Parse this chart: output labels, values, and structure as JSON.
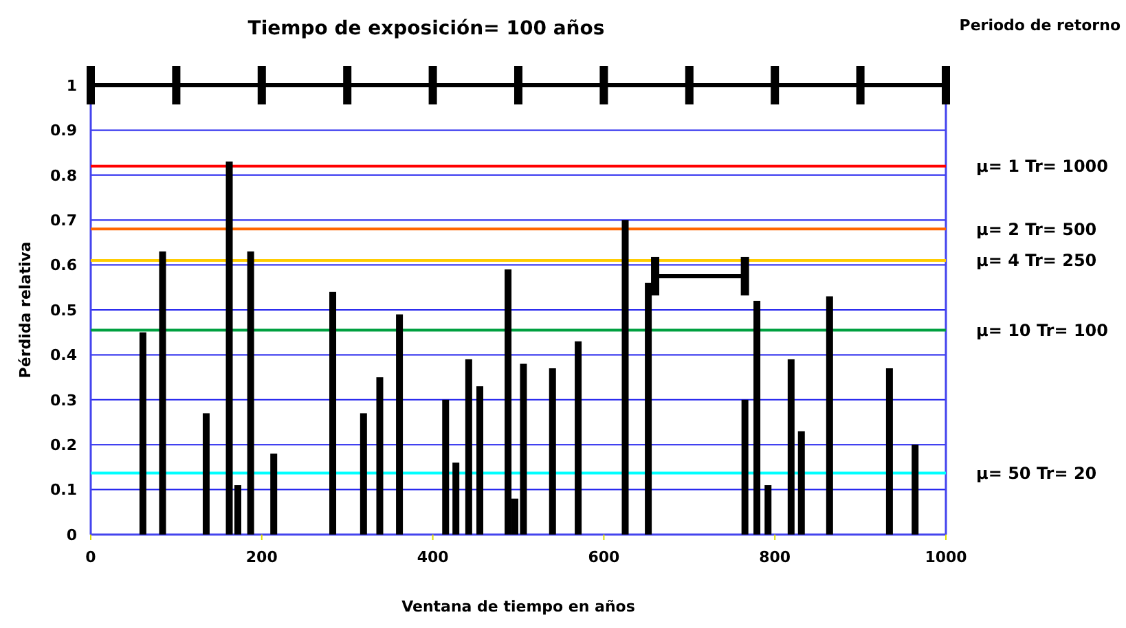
{
  "chart_data": {
    "type": "bar",
    "title": "Tiempo de exposición= 100 años",
    "xlabel": "Ventana de tiempo en años",
    "ylabel": "Pérdida relativa",
    "annotations": [
      "Periodo de retorno",
      "µ= 1  Tr= 1000",
      "µ= 2  Tr= 500",
      "µ= 4  Tr= 250",
      "µ= 10 Tr= 100",
      "µ= 50 Tr= 20"
    ],
    "xlim": [
      0,
      1000
    ],
    "xticks": [
      0,
      200,
      400,
      600,
      800,
      1000
    ],
    "ylim": [
      0,
      1
    ],
    "yticks": [
      0,
      0.1,
      0.2,
      0.3,
      0.4,
      0.5,
      0.6,
      0.7,
      0.8,
      0.9,
      1
    ],
    "grid": "y",
    "series": [
      {
        "color": "#000000",
        "x": [
          61,
          84,
          135,
          162,
          172,
          187,
          214,
          283,
          319,
          338,
          361,
          415,
          427,
          442,
          455,
          488,
          496,
          506,
          540,
          570,
          625,
          652,
          765,
          779,
          792,
          819,
          831,
          864,
          934,
          964
        ],
        "values": [
          0.45,
          0.63,
          0.27,
          0.83,
          0.11,
          0.63,
          0.18,
          0.54,
          0.27,
          0.35,
          0.49,
          0.3,
          0.16,
          0.39,
          0.33,
          0.59,
          0.08,
          0.38,
          0.37,
          0.43,
          0.7,
          0.56,
          0.3,
          0.52,
          0.11,
          0.39,
          0.23,
          0.53,
          0.37,
          0.2
        ]
      },
      {
        "type": "line",
        "color": "#000000",
        "marker": "none",
        "x": [
          0,
          100,
          200,
          300,
          400,
          500,
          600,
          700,
          800,
          900,
          1000
        ],
        "values": [
          1,
          1,
          1,
          1,
          1,
          1,
          1,
          1,
          1,
          1,
          1
        ]
      },
      {
        "type": "line",
        "color": "#000000",
        "marker": "none",
        "x": [
          660,
          765
        ],
        "values": [
          0.575,
          0.575
        ]
      }
    ],
    "ref_lines": [
      {
        "axis": "y",
        "value": 0.82,
        "color": "#ff0000"
      },
      {
        "axis": "y",
        "value": 0.68,
        "color": "#ff6600"
      },
      {
        "axis": "y",
        "value": 0.61,
        "color": "#ffcc00"
      },
      {
        "axis": "y",
        "value": 0.455,
        "color": "#00a040"
      },
      {
        "axis": "y",
        "value": 0.137,
        "color": "#00ffff"
      }
    ]
  }
}
